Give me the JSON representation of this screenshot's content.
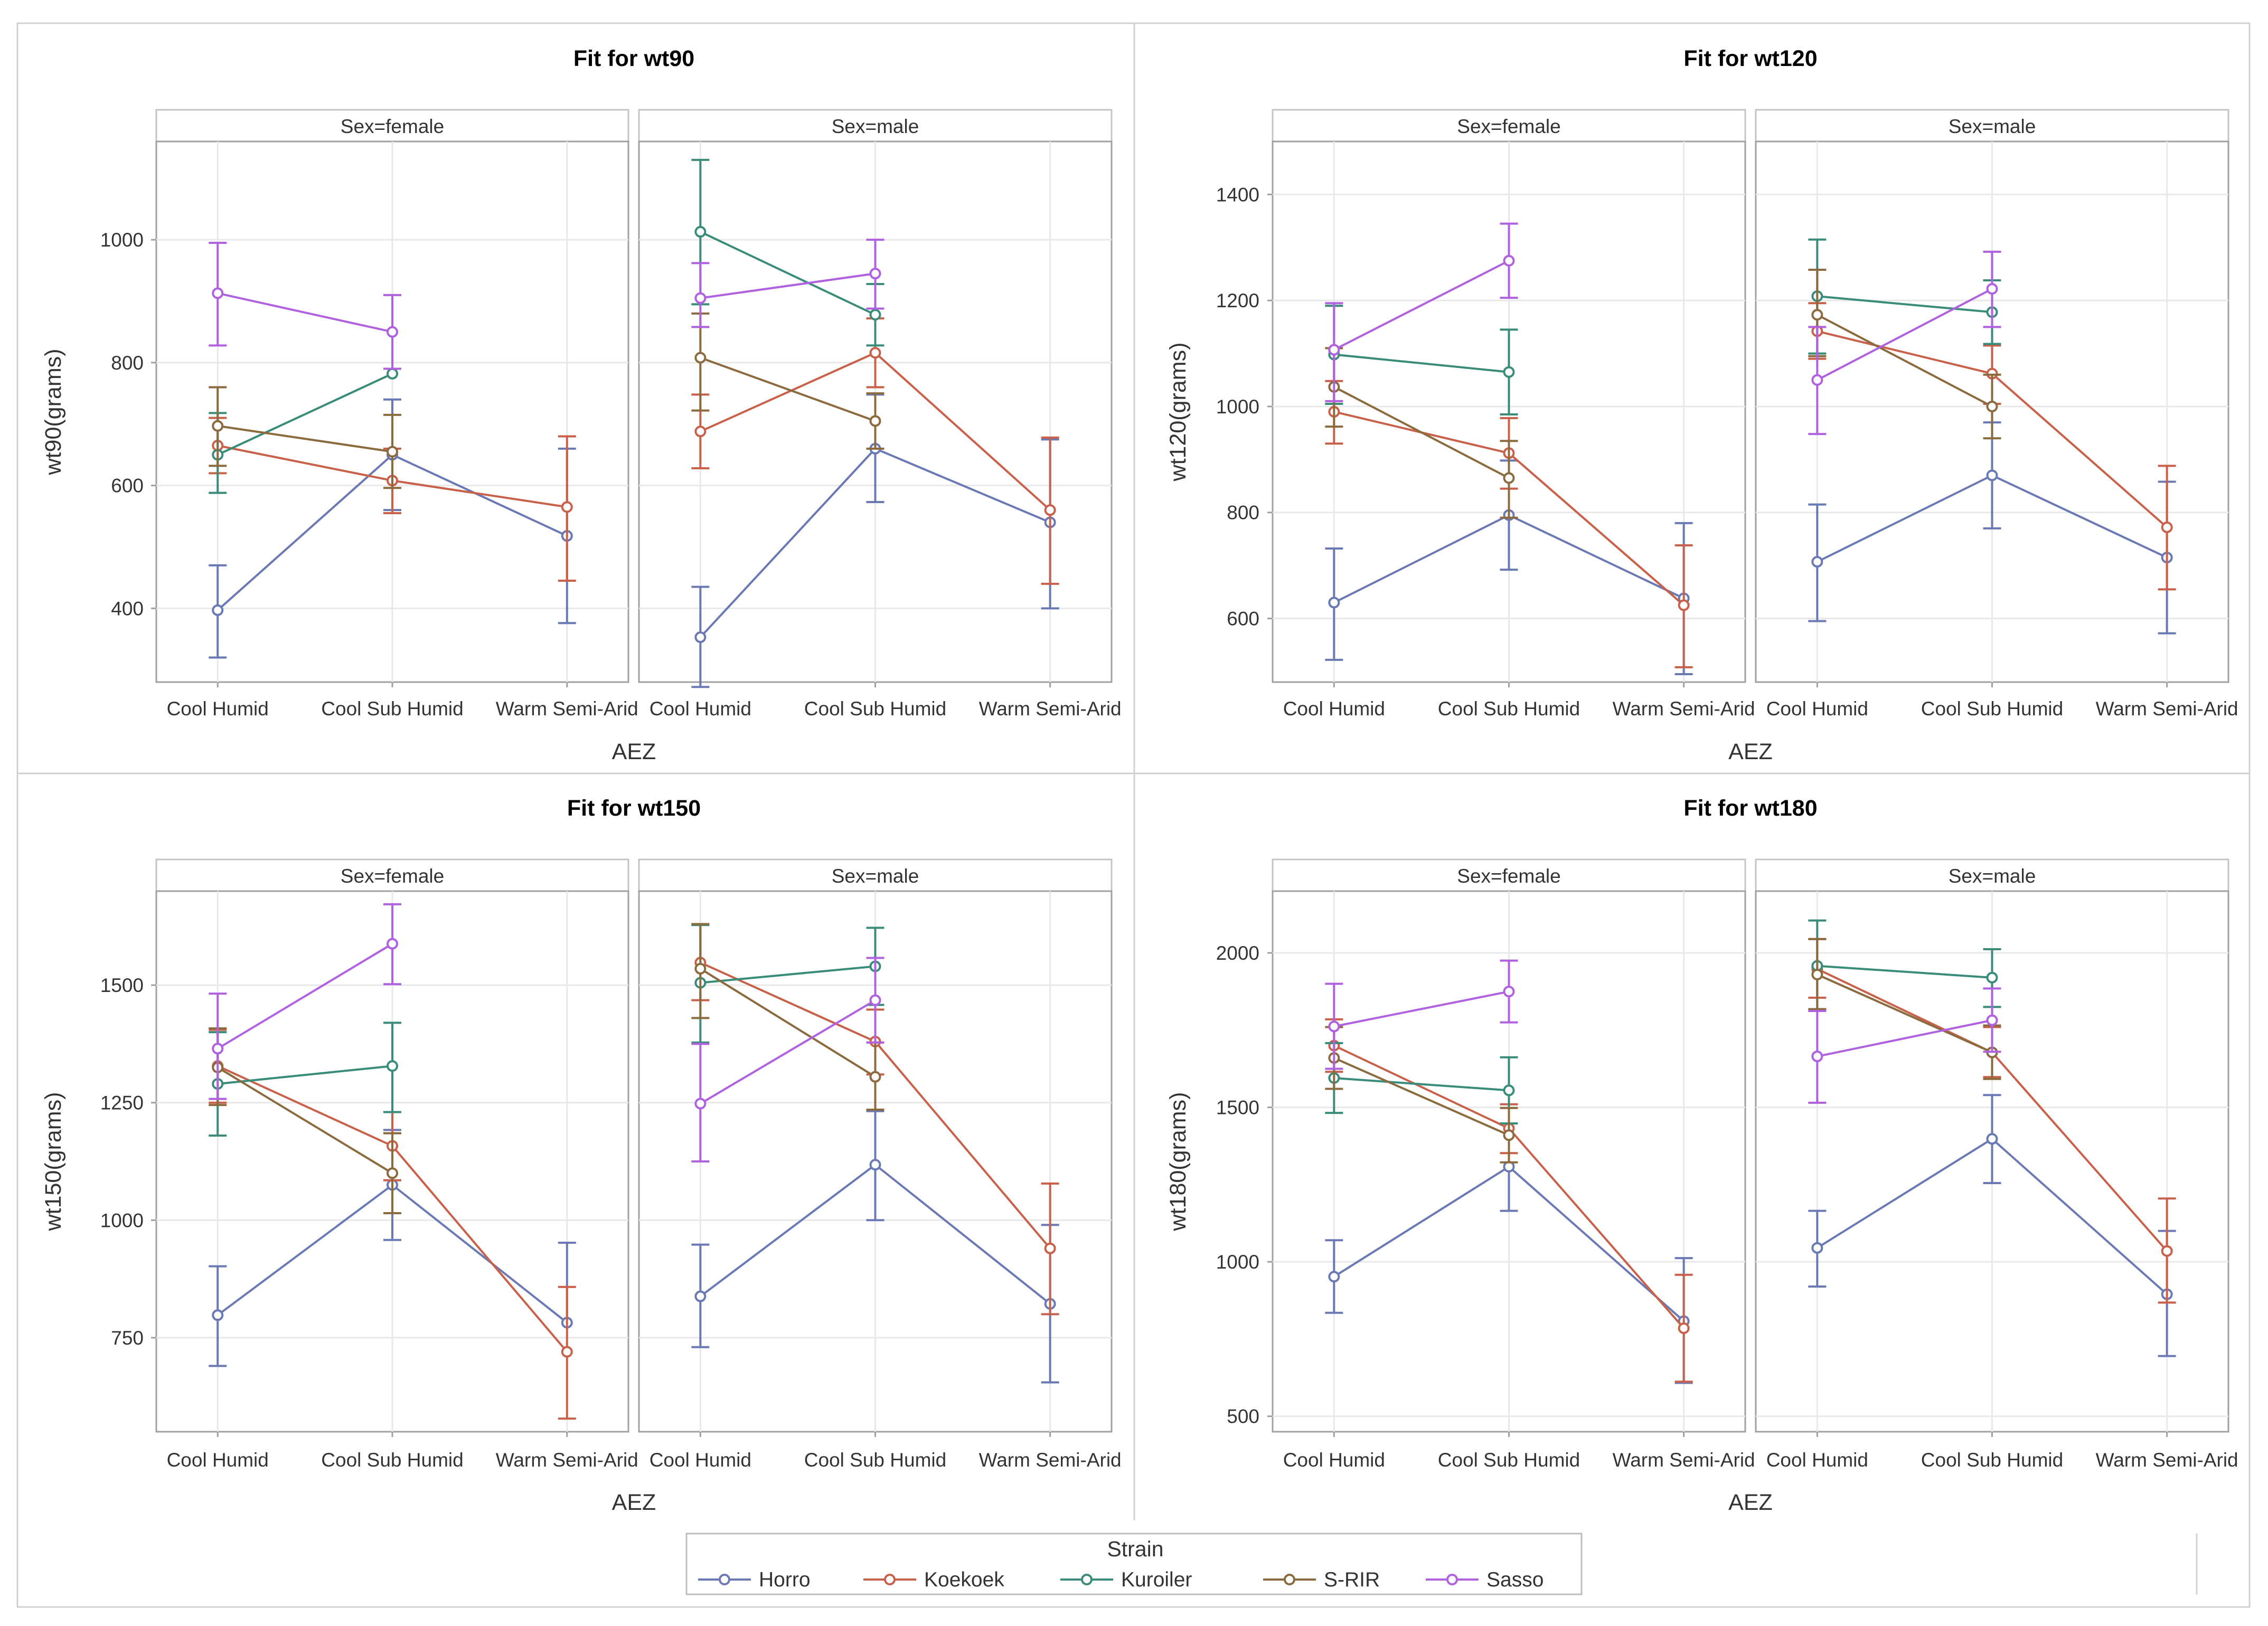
{
  "chart_data": {
    "type": "line",
    "x_categories": [
      "Cool Humid",
      "Cool Sub Humid",
      "Warm Semi-Arid"
    ],
    "strata": [
      {
        "key": "female",
        "label": "Sex=female"
      },
      {
        "key": "male",
        "label": "Sex=male"
      }
    ],
    "xlabel": "AEZ",
    "legend": {
      "title": "Strain",
      "placement": "bottom-center",
      "entries": [
        {
          "name": "Horro",
          "color": "#6a79b4"
        },
        {
          "name": "Koekoek",
          "color": "#c9614a"
        },
        {
          "name": "Kuroiler",
          "color": "#3a8c7a"
        },
        {
          "name": "S-RIR",
          "color": "#8b6a3e"
        },
        {
          "name": "Sasso",
          "color": "#b061e0"
        }
      ]
    },
    "panels": [
      {
        "title": "Fit for wt90",
        "ylabel": "wt90(grams)",
        "ylim": [
          280,
          1160
        ],
        "yticks": [
          400,
          600,
          800,
          1000
        ],
        "series": [
          {
            "name": "Horro",
            "female": [
              [
                397,
                320,
                470
              ],
              [
                650,
                560,
                740
              ],
              [
                518,
                376,
                660
              ]
            ],
            "male": [
              [
                353,
                272,
                435
              ],
              [
                660,
                573,
                748
              ],
              [
                540,
                400,
                675
              ]
            ]
          },
          {
            "name": "Koekoek",
            "female": [
              [
                665,
                620,
                710
              ],
              [
                608,
                555,
                660
              ],
              [
                565,
                445,
                680
              ]
            ],
            "male": [
              [
                688,
                628,
                748
              ],
              [
                816,
                760,
                872
              ],
              [
                560,
                440,
                678
              ]
            ]
          },
          {
            "name": "Kuroiler",
            "female": [
              [
                650,
                588,
                718
              ],
              [
                782,
                null,
                null
              ],
              null
            ],
            "male": [
              [
                1013,
                895,
                1130
              ],
              [
                878,
                828,
                928
              ],
              null
            ]
          },
          {
            "name": "S-RIR",
            "female": [
              [
                697,
                632,
                760
              ],
              [
                655,
                596,
                715
              ],
              null
            ],
            "male": [
              [
                808,
                722,
                880
              ],
              [
                705,
                660,
                750
              ],
              null
            ]
          },
          {
            "name": "Sasso",
            "female": [
              [
                913,
                828,
                995
              ],
              [
                850,
                790,
                910
              ],
              null
            ],
            "male": [
              [
                905,
                858,
                962
              ],
              [
                945,
                888,
                1000
              ],
              null
            ]
          }
        ]
      },
      {
        "title": "Fit for wt120",
        "ylabel": "wt120(grams)",
        "ylim": [
          480,
          1500
        ],
        "yticks": [
          600,
          800,
          1000,
          1200,
          1400
        ],
        "series": [
          {
            "name": "Horro",
            "female": [
              [
                630,
                522,
                732
              ],
              [
                795,
                692,
                898
              ],
              [
                638,
                495,
                780
              ]
            ],
            "male": [
              [
                707,
                595,
                815
              ],
              [
                870,
                770,
                970
              ],
              [
                715,
                572,
                858
              ]
            ]
          },
          {
            "name": "Koekoek",
            "female": [
              [
                990,
                930,
                1048
              ],
              [
                912,
                845,
                978
              ],
              [
                625,
                508,
                738
              ]
            ],
            "male": [
              [
                1142,
                1090,
                1195
              ],
              [
                1062,
                1005,
                1115
              ],
              [
                772,
                655,
                888
              ]
            ]
          },
          {
            "name": "Kuroiler",
            "female": [
              [
                1098,
                1005,
                1190
              ],
              [
                1065,
                985,
                1145
              ],
              null
            ],
            "male": [
              [
                1208,
                1100,
                1315
              ],
              [
                1178,
                1118,
                1238
              ],
              null
            ]
          },
          {
            "name": "S-RIR",
            "female": [
              [
                1037,
                962,
                1110
              ],
              [
                865,
                790,
                935
              ],
              null
            ],
            "male": [
              [
                1173,
                1095,
                1258
              ],
              [
                1000,
                940,
                1060
              ],
              null
            ]
          },
          {
            "name": "Sasso",
            "female": [
              [
                1107,
                1010,
                1195
              ],
              [
                1275,
                1205,
                1345
              ],
              null
            ],
            "male": [
              [
                1050,
                948,
                1150
              ],
              [
                1222,
                1150,
                1292
              ],
              null
            ]
          }
        ]
      },
      {
        "title": "Fit for wt150",
        "ylabel": "wt150(grams)",
        "ylim": [
          550,
          1700
        ],
        "yticks": [
          750,
          1000,
          1250,
          1500
        ],
        "series": [
          {
            "name": "Horro",
            "female": [
              [
                798,
                690,
                902
              ],
              [
                1075,
                958,
                1192
              ],
              [
                782,
                null,
                952
              ]
            ],
            "male": [
              [
                838,
                730,
                948
              ],
              [
                1118,
                1000,
                1232
              ],
              [
                822,
                655,
                990
              ]
            ]
          },
          {
            "name": "Koekoek",
            "female": [
              [
                1328,
                1250,
                1405
              ],
              [
                1158,
                1085,
                1230
              ],
              [
                720,
                578,
                858
              ]
            ],
            "male": [
              [
                1548,
                1468,
                1628
              ],
              [
                1380,
                1310,
                1448
              ],
              [
                940,
                800,
                1078
              ]
            ]
          },
          {
            "name": "Kuroiler",
            "female": [
              [
                1290,
                1180,
                1400
              ],
              [
                1328,
                1230,
                1420
              ],
              null
            ],
            "male": [
              [
                1505,
                1378,
                1628
              ],
              [
                1540,
                1458,
                1622
              ],
              null
            ]
          },
          {
            "name": "S-RIR",
            "female": [
              [
                1325,
                1245,
                1408
              ],
              [
                1100,
                1015,
                1185
              ],
              null
            ],
            "male": [
              [
                1535,
                1430,
                1630
              ],
              [
                1305,
                1235,
                1378
              ],
              null
            ]
          },
          {
            "name": "Sasso",
            "female": [
              [
                1365,
                1258,
                1482
              ],
              [
                1588,
                1502,
                1672
              ],
              null
            ],
            "male": [
              [
                1248,
                1125,
                1375
              ],
              [
                1468,
                1378,
                1558
              ],
              null
            ]
          }
        ]
      },
      {
        "title": "Fit for wt180",
        "ylabel": "wt180(grams)",
        "ylim": [
          450,
          2200
        ],
        "yticks": [
          500,
          1000,
          1500,
          2000
        ],
        "series": [
          {
            "name": "Horro",
            "female": [
              [
                952,
                835,
                1070
              ],
              [
                1308,
                1165,
                1448
              ],
              [
                808,
                608,
                1012
              ]
            ],
            "male": [
              [
                1045,
                920,
                1165
              ],
              [
                1398,
                1255,
                1540
              ],
              [
                895,
                695,
                1100
              ]
            ]
          },
          {
            "name": "Koekoek",
            "female": [
              [
                1700,
                1615,
                1785
              ],
              [
                1432,
                1352,
                1510
              ],
              [
                785,
                612,
                958
              ]
            ],
            "male": [
              [
                1948,
                1855,
                2045
              ],
              [
                1678,
                1598,
                1760
              ],
              [
                1035,
                868,
                1205
              ]
            ]
          },
          {
            "name": "Kuroiler",
            "female": [
              [
                1595,
                1482,
                1708
              ],
              [
                1555,
                1448,
                1662
              ],
              null
            ],
            "male": [
              [
                1958,
                1812,
                2105
              ],
              [
                1920,
                1825,
                2012
              ],
              null
            ]
          },
          {
            "name": "S-RIR",
            "female": [
              [
                1660,
                1560,
                1760
              ],
              [
                1410,
                1322,
                1498
              ],
              null
            ],
            "male": [
              [
                1930,
                1818,
                2045
              ],
              [
                1678,
                1592,
                1765
              ],
              null
            ]
          },
          {
            "name": "Sasso",
            "female": [
              [
                1762,
                1625,
                1900
              ],
              [
                1875,
                1775,
                1975
              ],
              null
            ],
            "male": [
              [
                1665,
                1515,
                1812
              ],
              [
                1782,
                1680,
                1885
              ],
              null
            ]
          }
        ]
      }
    ]
  }
}
